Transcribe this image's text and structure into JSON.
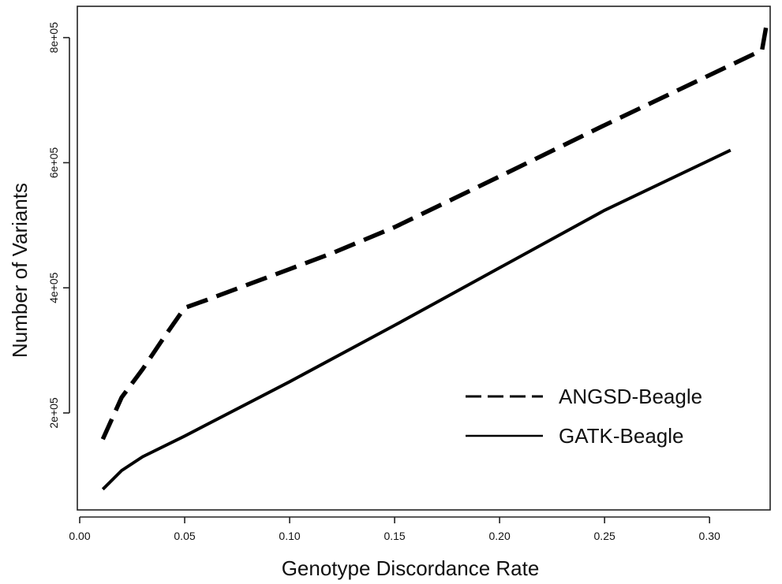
{
  "chart_data": {
    "type": "line",
    "title": "",
    "xlabel": "Genotype Discordance Rate",
    "ylabel": "Number of Variants",
    "xlim": [
      0.0,
      0.33
    ],
    "ylim": [
      45000,
      850000
    ],
    "x_ticks": [
      0.0,
      0.05,
      0.1,
      0.15,
      0.2,
      0.25,
      0.3
    ],
    "x_tick_labels": [
      "0.00",
      "0.05",
      "0.10",
      "0.15",
      "0.20",
      "0.25",
      "0.30"
    ],
    "y_ticks": [
      200000,
      400000,
      600000,
      800000
    ],
    "y_tick_labels": [
      "2e+05",
      "4e+05",
      "6e+05",
      "8e+05"
    ],
    "grid": false,
    "legend_position": "bottom-right",
    "series": [
      {
        "name": "ANGSD-Beagle",
        "line_style": "dashed",
        "color": "#000000",
        "points": [
          [
            0.011,
            158000
          ],
          [
            0.02,
            225000
          ],
          [
            0.03,
            270000
          ],
          [
            0.04,
            320000
          ],
          [
            0.05,
            368000
          ],
          [
            0.06,
            380000
          ],
          [
            0.08,
            405000
          ],
          [
            0.1,
            430000
          ],
          [
            0.12,
            455000
          ],
          [
            0.15,
            497000
          ],
          [
            0.2,
            578000
          ],
          [
            0.25,
            660000
          ],
          [
            0.3,
            740000
          ],
          [
            0.325,
            780000
          ],
          [
            0.327,
            818000
          ]
        ]
      },
      {
        "name": "GATK-Beagle",
        "line_style": "solid",
        "color": "#000000",
        "points": [
          [
            0.011,
            78000
          ],
          [
            0.02,
            108000
          ],
          [
            0.03,
            130000
          ],
          [
            0.05,
            163000
          ],
          [
            0.1,
            250000
          ],
          [
            0.15,
            340000
          ],
          [
            0.2,
            432000
          ],
          [
            0.25,
            524000
          ],
          [
            0.31,
            620000
          ]
        ]
      }
    ]
  }
}
